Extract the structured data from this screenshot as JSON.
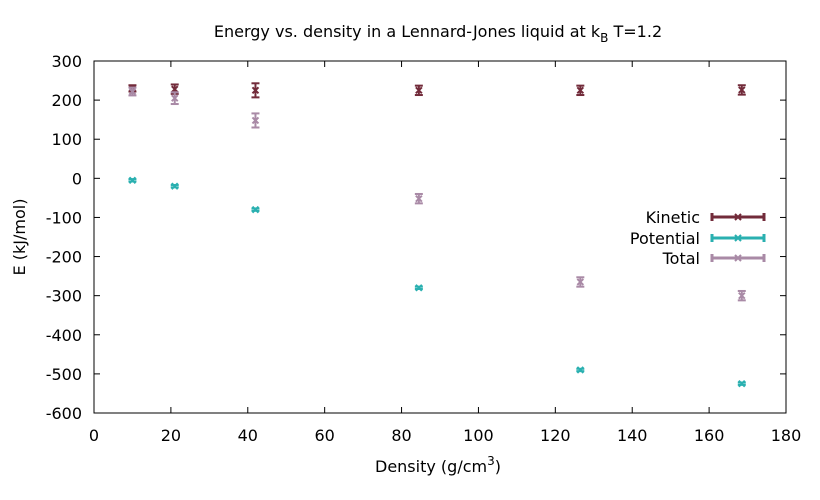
{
  "chart_data": {
    "type": "scatter",
    "title": {
      "main": "Energy vs. density in a Lennard-Jones liquid at k",
      "sub": "B",
      "rest": " T=1.2"
    },
    "xlabel": {
      "main": "Density (g/cm",
      "sup": "3",
      "rest": ")"
    },
    "ylabel": "E (kJ/mol)",
    "xlim": [
      0,
      180
    ],
    "ylim": [
      -600,
      300
    ],
    "xticks": [
      0,
      20,
      40,
      60,
      80,
      100,
      120,
      140,
      160,
      180
    ],
    "yticks": [
      -600,
      -500,
      -400,
      -300,
      -200,
      -100,
      0,
      100,
      200,
      300
    ],
    "grid": false,
    "legend_position": "right",
    "series": [
      {
        "name": "Kinetic",
        "color": "#722b3a",
        "x": [
          10,
          21,
          42,
          84.5,
          126.5,
          168.5
        ],
        "y": [
          230,
          228,
          225,
          225,
          225,
          226
        ],
        "err": [
          8,
          12,
          18,
          12,
          12,
          12
        ]
      },
      {
        "name": "Potential",
        "color": "#2ab0b0",
        "x": [
          10,
          21,
          42,
          84.5,
          126.5,
          168.5
        ],
        "y": [
          -5,
          -20,
          -80,
          -280,
          -490,
          -525
        ],
        "err": [
          3,
          3,
          3,
          3,
          3,
          3
        ]
      },
      {
        "name": "Total",
        "color": "#a98aa6",
        "x": [
          10,
          21,
          42,
          84.5,
          126.5,
          168.5
        ],
        "y": [
          222,
          205,
          148,
          -52,
          -265,
          -300
        ],
        "err": [
          10,
          15,
          18,
          12,
          12,
          12
        ]
      }
    ]
  }
}
